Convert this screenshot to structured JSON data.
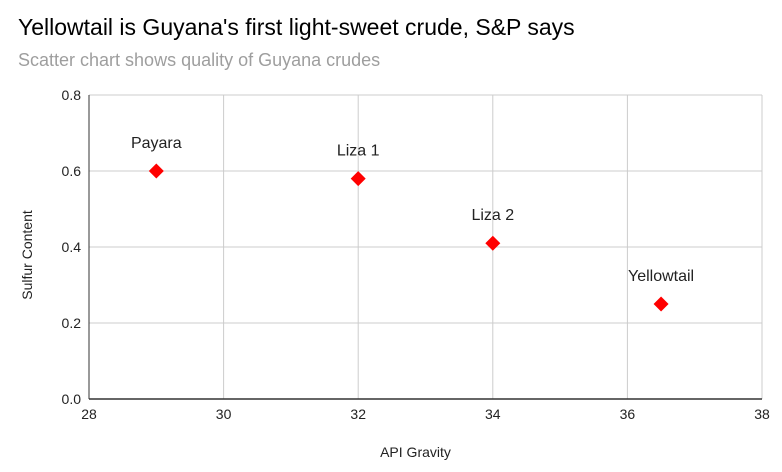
{
  "chart_title": "Yellowtail is Guyana's first light-sweet crude, S&P says",
  "chart_subtitle": "Scatter chart shows quality of Guyana crudes",
  "chart_data": {
    "type": "scatter",
    "title": "Yellowtail is Guyana's first light-sweet crude, S&P says",
    "subtitle": "Scatter chart shows quality of Guyana crudes",
    "xlabel": "API Gravity",
    "ylabel": "Sulfur Content",
    "xlim": [
      28,
      38
    ],
    "ylim": [
      0,
      0.8
    ],
    "xticks": [
      28,
      30,
      32,
      34,
      36,
      38
    ],
    "yticks": [
      0.0,
      0.2,
      0.4,
      0.6,
      0.8
    ],
    "ytick_labels": [
      "0.0",
      "0.2",
      "0.4",
      "0.6",
      "0.8"
    ],
    "grid": true,
    "marker": "diamond",
    "color": "#ff0000",
    "points": [
      {
        "label": "Payara",
        "x": 29,
        "y": 0.6
      },
      {
        "label": "Liza 1",
        "x": 32,
        "y": 0.58
      },
      {
        "label": "Liza 2",
        "x": 34,
        "y": 0.41
      },
      {
        "label": "Yellowtail",
        "x": 36.5,
        "y": 0.25
      }
    ]
  }
}
